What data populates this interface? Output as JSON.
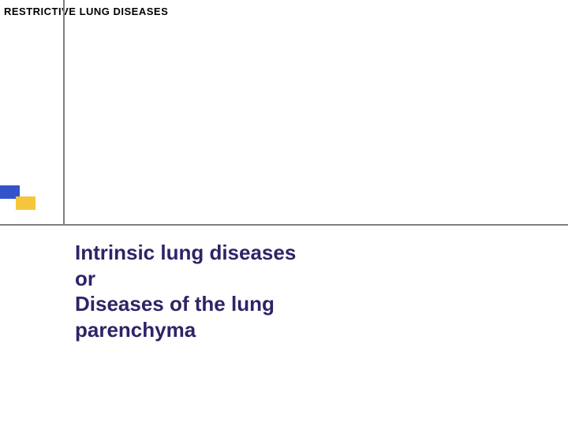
{
  "header": {
    "text": "RESTRICTIVE  LUNG DISEASES",
    "color": "#000000",
    "fontsize": 13
  },
  "decoration": {
    "blue_box_color": "#3352cc",
    "yellow_box_color": "#f5c63c",
    "line_color": "#808080"
  },
  "title": {
    "line1": "Intrinsic lung diseases",
    "line2": "or",
    "line3": "Diseases of the lung",
    "line4": "parenchyma",
    "color": "#2e2466",
    "fontsize": 26
  }
}
